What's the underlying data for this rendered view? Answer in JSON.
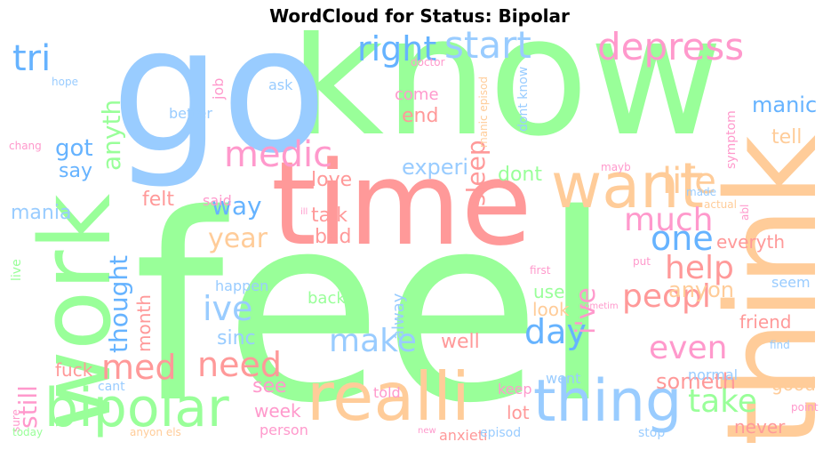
{
  "title": "WordCloud for Status: Bipolar",
  "palette": {
    "green": "#99ff99",
    "blue": "#99ccff",
    "orange": "#ffcc99",
    "red": "#ff9999",
    "pink": "#ff99cc",
    "light_blue": "#66b3ff"
  },
  "words": [
    {
      "text": "feel",
      "color": "#99ff99"
    },
    {
      "text": "know",
      "color": "#99ff99"
    },
    {
      "text": "go",
      "color": "#99ccff"
    },
    {
      "text": "time",
      "color": "#ff9999"
    },
    {
      "text": "think",
      "color": "#ffcc99"
    },
    {
      "text": "work",
      "color": "#99ff99"
    },
    {
      "text": "want",
      "color": "#ffcc99"
    },
    {
      "text": "realli",
      "color": "#ffcc99"
    },
    {
      "text": "bipolar",
      "color": "#99ff99"
    },
    {
      "text": "thing",
      "color": "#99ccff"
    },
    {
      "text": "depress",
      "color": "#ff99cc"
    },
    {
      "text": "start",
      "color": "#99ccff"
    },
    {
      "text": "right",
      "color": "#66b3ff"
    },
    {
      "text": "tri",
      "color": "#66b3ff"
    },
    {
      "text": "life",
      "color": "#ffcc99"
    },
    {
      "text": "medic",
      "color": "#ff99cc"
    },
    {
      "text": "one",
      "color": "#66b3ff"
    },
    {
      "text": "day",
      "color": "#66b3ff"
    },
    {
      "text": "help",
      "color": "#ff9999"
    },
    {
      "text": "much",
      "color": "#ff99cc"
    },
    {
      "text": "even",
      "color": "#ff99cc"
    },
    {
      "text": "peopl",
      "color": "#ff9999"
    },
    {
      "text": "make",
      "color": "#99ccff"
    },
    {
      "text": "ive",
      "color": "#99ccff"
    },
    {
      "text": "need",
      "color": "#ff9999"
    },
    {
      "text": "med",
      "color": "#ff9999"
    },
    {
      "text": "year",
      "color": "#ffcc99"
    },
    {
      "text": "take",
      "color": "#99ff99"
    },
    {
      "text": "i've",
      "color": "#ff99cc"
    },
    {
      "text": "thought",
      "color": "#66b3ff"
    },
    {
      "text": "sleep",
      "color": "#ff9999"
    },
    {
      "text": "anyth",
      "color": "#99ff99"
    },
    {
      "text": "still",
      "color": "#ff99cc"
    },
    {
      "text": "got",
      "color": "#66b3ff"
    },
    {
      "text": "way",
      "color": "#66b3ff"
    },
    {
      "text": "manic",
      "color": "#66b3ff"
    },
    {
      "text": "someth",
      "color": "#ff9999"
    },
    {
      "text": "say",
      "color": "#66b3ff"
    },
    {
      "text": "mania",
      "color": "#99ccff"
    },
    {
      "text": "tell",
      "color": "#ffcc99"
    },
    {
      "text": "experi",
      "color": "#99ccff"
    },
    {
      "text": "love",
      "color": "#ff9999"
    },
    {
      "text": "talk",
      "color": "#ff9999"
    },
    {
      "text": "bad",
      "color": "#ff9999"
    },
    {
      "text": "dont",
      "color": "#99ff99"
    },
    {
      "text": "end",
      "color": "#ff9999"
    },
    {
      "text": "felt",
      "color": "#ff9999"
    },
    {
      "text": "everyth",
      "color": "#ff9999"
    },
    {
      "text": "anyon",
      "color": "#ffcc99"
    },
    {
      "text": "use",
      "color": "#99ff99"
    },
    {
      "text": "friend",
      "color": "#ff9999"
    },
    {
      "text": "good",
      "color": "#ffcc99"
    },
    {
      "text": "never",
      "color": "#ff9999"
    },
    {
      "text": "see",
      "color": "#ff99cc"
    },
    {
      "text": "week",
      "color": "#ff99cc"
    },
    {
      "text": "well",
      "color": "#ff9999"
    },
    {
      "text": "lot",
      "color": "#ff9999"
    },
    {
      "text": "fuck",
      "color": "#ff9999"
    },
    {
      "text": "month",
      "color": "#ff9999"
    },
    {
      "text": "sinc",
      "color": "#99ccff"
    },
    {
      "text": "look",
      "color": "#ffcc99"
    },
    {
      "text": "alway",
      "color": "#99ccff"
    },
    {
      "text": "back",
      "color": "#99ff99"
    },
    {
      "text": "happen",
      "color": "#99ccff"
    },
    {
      "text": "come",
      "color": "#ff99cc"
    },
    {
      "text": "seem",
      "color": "#99ccff"
    },
    {
      "text": "better",
      "color": "#99ccff"
    },
    {
      "text": "ask",
      "color": "#99ccff"
    },
    {
      "text": "job",
      "color": "#ff99cc"
    },
    {
      "text": "said",
      "color": "#ff99cc"
    },
    {
      "text": "keep",
      "color": "#ff99cc"
    },
    {
      "text": "told",
      "color": "#ff99cc"
    },
    {
      "text": "person",
      "color": "#ff99cc"
    },
    {
      "text": "anxieti",
      "color": "#ff9999"
    },
    {
      "text": "went",
      "color": "#99ccff"
    },
    {
      "text": "normal",
      "color": "#99ccff"
    },
    {
      "text": "stop",
      "color": "#99ccff"
    },
    {
      "text": "episod",
      "color": "#99ccff"
    },
    {
      "text": "cant",
      "color": "#99ccff"
    },
    {
      "text": "dont know",
      "color": "#99ccff"
    },
    {
      "text": "symptom",
      "color": "#ff99cc"
    },
    {
      "text": "live",
      "color": "#99ff99"
    },
    {
      "text": "hope",
      "color": "#99ccff"
    },
    {
      "text": "chang",
      "color": "#ff99cc"
    },
    {
      "text": "doctor",
      "color": "#ff99cc"
    },
    {
      "text": "manic episod",
      "color": "#ffcc99"
    },
    {
      "text": "made",
      "color": "#99ccff"
    },
    {
      "text": "mayb",
      "color": "#ff99cc"
    },
    {
      "text": "actual",
      "color": "#ffcc99"
    },
    {
      "text": "abl",
      "color": "#ff99cc"
    },
    {
      "text": "put",
      "color": "#ff99cc"
    },
    {
      "text": "first",
      "color": "#ff99cc"
    },
    {
      "text": "sometim",
      "color": "#ff99cc"
    },
    {
      "text": "find",
      "color": "#99ccff"
    },
    {
      "text": "ill",
      "color": "#ff99cc"
    },
    {
      "text": "point",
      "color": "#ff99cc"
    },
    {
      "text": "sure",
      "color": "#ff99cc"
    },
    {
      "text": "today",
      "color": "#99ff99"
    },
    {
      "text": "anyon els",
      "color": "#ffcc99"
    },
    {
      "text": "new",
      "color": "#ff99cc"
    }
  ]
}
